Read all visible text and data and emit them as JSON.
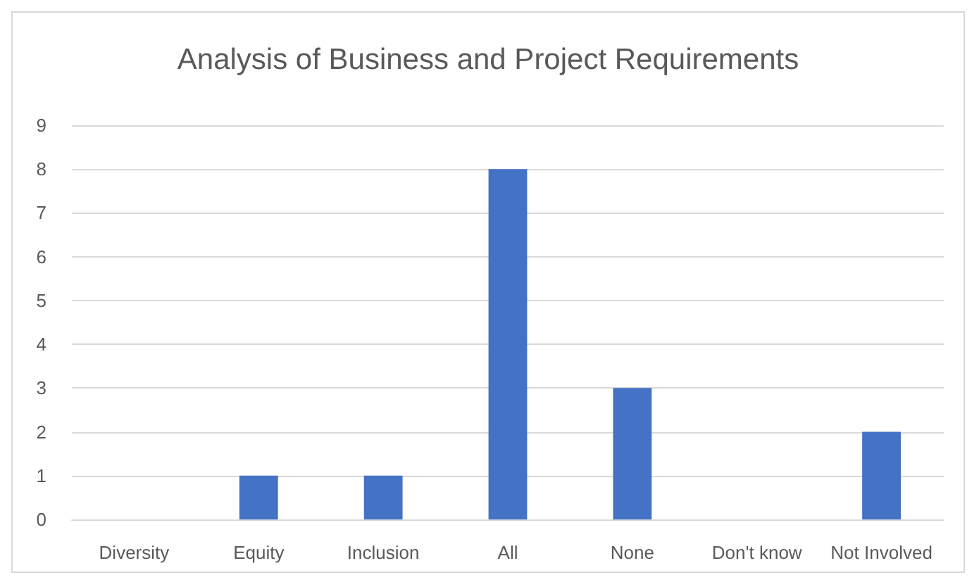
{
  "chart_data": {
    "type": "bar",
    "title": "Analysis of Business and Project Requirements",
    "categories": [
      "Diversity",
      "Equity",
      "Inclusion",
      "All",
      "None",
      "Don't know",
      "Not Involved"
    ],
    "values": [
      0,
      1,
      1,
      8,
      3,
      0,
      2
    ],
    "color": "#4472c4",
    "ylim": [
      0,
      9
    ],
    "yticks": [
      0,
      1,
      2,
      3,
      4,
      5,
      6,
      7,
      8,
      9
    ],
    "grid": "y"
  }
}
